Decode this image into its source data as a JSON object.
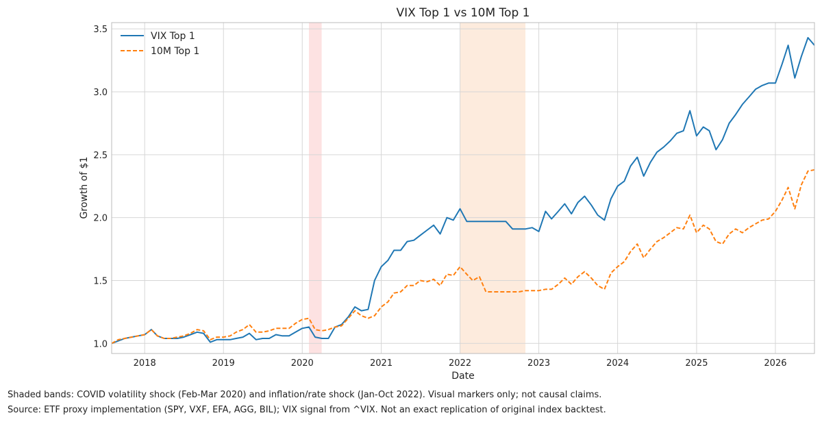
{
  "chart_data": {
    "type": "line",
    "title": "VIX Top 1 vs 10M Top 1",
    "xlabel": "Date",
    "ylabel": "Growth of $1",
    "xlim": [
      "2017-08-01",
      "2026-07-01"
    ],
    "ylim": [
      0.92,
      3.55
    ],
    "x_ticks": [
      "2018",
      "2019",
      "2020",
      "2021",
      "2022",
      "2023",
      "2024",
      "2025",
      "2026"
    ],
    "y_ticks": [
      "1.0",
      "1.5",
      "2.0",
      "2.5",
      "3.0",
      "3.5"
    ],
    "grid": true,
    "legend_position": "top-left",
    "shaded_bands": [
      {
        "start": "2020-02-01",
        "end": "2020-03-31",
        "color": "#fde2e2"
      },
      {
        "start": "2022-01-01",
        "end": "2022-10-31",
        "color": "#fdebdd"
      }
    ],
    "x": [
      "2017-08",
      "2017-09",
      "2017-10",
      "2017-11",
      "2017-12",
      "2018-01",
      "2018-02",
      "2018-03",
      "2018-04",
      "2018-05",
      "2018-06",
      "2018-07",
      "2018-08",
      "2018-09",
      "2018-10",
      "2018-11",
      "2018-12",
      "2019-01",
      "2019-02",
      "2019-03",
      "2019-04",
      "2019-05",
      "2019-06",
      "2019-07",
      "2019-08",
      "2019-09",
      "2019-10",
      "2019-11",
      "2019-12",
      "2020-01",
      "2020-02",
      "2020-03",
      "2020-04",
      "2020-05",
      "2020-06",
      "2020-07",
      "2020-08",
      "2020-09",
      "2020-10",
      "2020-11",
      "2020-12",
      "2021-01",
      "2021-02",
      "2021-03",
      "2021-04",
      "2021-05",
      "2021-06",
      "2021-07",
      "2021-08",
      "2021-09",
      "2021-10",
      "2021-11",
      "2021-12",
      "2022-01",
      "2022-02",
      "2022-03",
      "2022-04",
      "2022-05",
      "2022-06",
      "2022-07",
      "2022-08",
      "2022-09",
      "2022-10",
      "2022-11",
      "2022-12",
      "2023-01",
      "2023-02",
      "2023-03",
      "2023-04",
      "2023-05",
      "2023-06",
      "2023-07",
      "2023-08",
      "2023-09",
      "2023-10",
      "2023-11",
      "2023-12",
      "2024-01",
      "2024-02",
      "2024-03",
      "2024-04",
      "2024-05",
      "2024-06",
      "2024-07",
      "2024-08",
      "2024-09",
      "2024-10",
      "2024-11",
      "2024-12",
      "2025-01",
      "2025-02",
      "2025-03",
      "2025-04",
      "2025-05",
      "2025-06",
      "2025-07",
      "2025-08",
      "2025-09",
      "2025-10",
      "2025-11",
      "2025-12",
      "2026-01",
      "2026-02",
      "2026-03",
      "2026-04",
      "2026-05",
      "2026-06",
      "2026-07"
    ],
    "series": [
      {
        "name": "VIX Top 1",
        "color": "#1f77b4",
        "style": "solid",
        "values": [
          1.0,
          1.02,
          1.04,
          1.05,
          1.06,
          1.07,
          1.11,
          1.06,
          1.04,
          1.04,
          1.04,
          1.05,
          1.07,
          1.09,
          1.08,
          1.01,
          1.03,
          1.03,
          1.03,
          1.04,
          1.05,
          1.08,
          1.03,
          1.04,
          1.04,
          1.07,
          1.06,
          1.06,
          1.09,
          1.12,
          1.13,
          1.05,
          1.04,
          1.04,
          1.13,
          1.15,
          1.21,
          1.29,
          1.26,
          1.27,
          1.5,
          1.61,
          1.66,
          1.74,
          1.74,
          1.81,
          1.82,
          1.86,
          1.9,
          1.94,
          1.87,
          2.0,
          1.98,
          2.07,
          1.97,
          1.97,
          1.97,
          1.97,
          1.97,
          1.97,
          1.97,
          1.91,
          1.91,
          1.91,
          1.92,
          1.89,
          2.05,
          1.99,
          2.05,
          2.11,
          2.03,
          2.12,
          2.17,
          2.1,
          2.02,
          1.98,
          2.15,
          2.25,
          2.29,
          2.41,
          2.48,
          2.33,
          2.44,
          2.52,
          2.56,
          2.61,
          2.67,
          2.69,
          2.85,
          2.65,
          2.72,
          2.69,
          2.54,
          2.62,
          2.75,
          2.82,
          2.9,
          2.96,
          3.02,
          3.05,
          3.07,
          3.07,
          3.22,
          3.37,
          3.11,
          3.28,
          3.43,
          3.37
        ]
      },
      {
        "name": "10M Top 1",
        "color": "#ff7f0e",
        "style": "dashed",
        "values": [
          1.0,
          1.03,
          1.04,
          1.05,
          1.06,
          1.07,
          1.11,
          1.06,
          1.04,
          1.04,
          1.05,
          1.06,
          1.08,
          1.11,
          1.1,
          1.03,
          1.05,
          1.05,
          1.06,
          1.09,
          1.11,
          1.15,
          1.09,
          1.09,
          1.1,
          1.12,
          1.12,
          1.12,
          1.16,
          1.19,
          1.2,
          1.11,
          1.1,
          1.11,
          1.13,
          1.14,
          1.2,
          1.26,
          1.22,
          1.2,
          1.22,
          1.29,
          1.33,
          1.4,
          1.41,
          1.46,
          1.46,
          1.5,
          1.49,
          1.51,
          1.46,
          1.55,
          1.54,
          1.61,
          1.55,
          1.5,
          1.53,
          1.41,
          1.41,
          1.41,
          1.41,
          1.41,
          1.41,
          1.42,
          1.42,
          1.42,
          1.43,
          1.43,
          1.47,
          1.52,
          1.47,
          1.53,
          1.57,
          1.52,
          1.46,
          1.43,
          1.56,
          1.61,
          1.65,
          1.73,
          1.79,
          1.68,
          1.75,
          1.81,
          1.84,
          1.88,
          1.92,
          1.91,
          2.02,
          1.88,
          1.94,
          1.91,
          1.81,
          1.79,
          1.87,
          1.91,
          1.88,
          1.92,
          1.95,
          1.98,
          1.99,
          2.05,
          2.14,
          2.24,
          2.07,
          2.26,
          2.37,
          2.38
        ]
      }
    ]
  },
  "footnotes": {
    "line1": "Shaded bands: COVID volatility shock (Feb-Mar 2020) and inflation/rate shock (Jan-Oct 2022). Visual markers only; not causal claims.",
    "line2": "Source: ETF proxy implementation (SPY, VXF, EFA, AGG, BIL); VIX signal from ^VIX. Not an exact replication of original index backtest."
  }
}
